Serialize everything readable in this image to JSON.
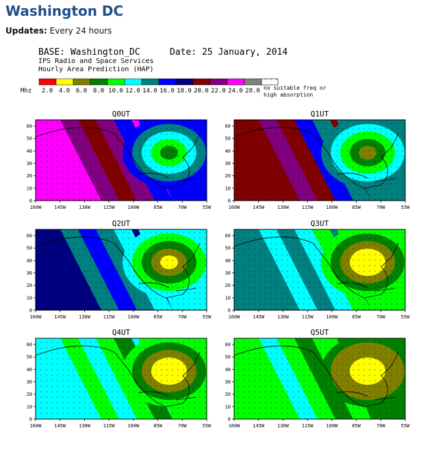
{
  "header": {
    "title": "Washington DC",
    "updates_label": "Updates:",
    "updates_value": "Every 24 hours"
  },
  "figure": {
    "base": "BASE: Washington_DC",
    "date": "Date:  25 January, 2014",
    "org": "IPS Radio and Space Services",
    "product": "Hourly Area Prediction (HAP)"
  },
  "legend": {
    "unit": "Mhz",
    "values": [
      "2.0",
      "4.0",
      "6.0",
      "8.0",
      "10.0",
      "12.0",
      "14.0",
      "16.0",
      "18.0",
      "20.0",
      "22.0",
      "24.0",
      "28.0"
    ],
    "colors": [
      "#ff0000",
      "#ffff00",
      "#808000",
      "#008000",
      "#00ff00",
      "#00ffff",
      "#008080",
      "#0000ff",
      "#000080",
      "#800000",
      "#800080",
      "#ff00ff",
      "#808080"
    ],
    "no_freq_line1": "no suitable freq or",
    "no_freq_line2": "high absorption"
  },
  "axes": {
    "x_ticks": [
      "160W",
      "145W",
      "130W",
      "115W",
      "100W",
      "85W",
      "70W",
      "55W"
    ],
    "y_ticks": [
      "0",
      "10",
      "20",
      "30",
      "40",
      "50",
      "60"
    ]
  },
  "panels": [
    {
      "title": "Q0UT"
    },
    {
      "title": "Q1UT"
    },
    {
      "title": "Q2UT"
    },
    {
      "title": "Q3UT"
    },
    {
      "title": "Q4UT"
    },
    {
      "title": "Q5UT"
    }
  ]
}
